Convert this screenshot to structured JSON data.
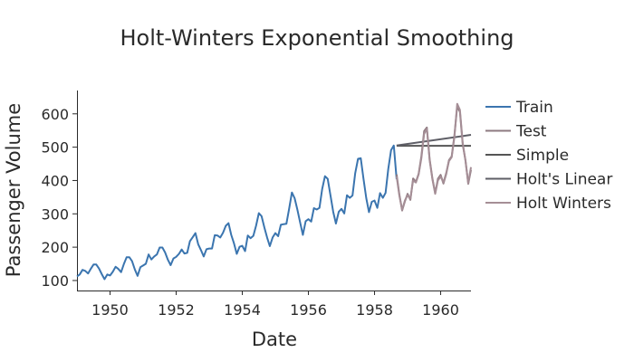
{
  "chart_data": {
    "type": "line",
    "title": "Holt-Winters Exponential Smoothing",
    "xlabel": "Date",
    "ylabel": "Passenger Volume",
    "x_ticks": [
      "1950",
      "1952",
      "1954",
      "1956",
      "1958",
      "1960"
    ],
    "y_ticks": [
      "100",
      "200",
      "300",
      "400",
      "500",
      "600"
    ],
    "xlim": [
      "1949-01",
      "1960-12"
    ],
    "ylim": [
      70,
      670
    ],
    "grid": false,
    "legend_position": "right",
    "series": [
      {
        "name": "Train",
        "color": "#3b75af",
        "dates": [
          "1949-01",
          "1949-02",
          "1949-03",
          "1949-04",
          "1949-05",
          "1949-06",
          "1949-07",
          "1949-08",
          "1949-09",
          "1949-10",
          "1949-11",
          "1949-12",
          "1950-01",
          "1950-02",
          "1950-03",
          "1950-04",
          "1950-05",
          "1950-06",
          "1950-07",
          "1950-08",
          "1950-09",
          "1950-10",
          "1950-11",
          "1950-12",
          "1951-01",
          "1951-02",
          "1951-03",
          "1951-04",
          "1951-05",
          "1951-06",
          "1951-07",
          "1951-08",
          "1951-09",
          "1951-10",
          "1951-11",
          "1951-12",
          "1952-01",
          "1952-02",
          "1952-03",
          "1952-04",
          "1952-05",
          "1952-06",
          "1952-07",
          "1952-08",
          "1952-09",
          "1952-10",
          "1952-11",
          "1952-12",
          "1953-01",
          "1953-02",
          "1953-03",
          "1953-04",
          "1953-05",
          "1953-06",
          "1953-07",
          "1953-08",
          "1953-09",
          "1953-10",
          "1953-11",
          "1953-12",
          "1954-01",
          "1954-02",
          "1954-03",
          "1954-04",
          "1954-05",
          "1954-06",
          "1954-07",
          "1954-08",
          "1954-09",
          "1954-10",
          "1954-11",
          "1954-12",
          "1955-01",
          "1955-02",
          "1955-03",
          "1955-04",
          "1955-05",
          "1955-06",
          "1955-07",
          "1955-08",
          "1955-09",
          "1955-10",
          "1955-11",
          "1955-12",
          "1956-01",
          "1956-02",
          "1956-03",
          "1956-04",
          "1956-05",
          "1956-06",
          "1956-07",
          "1956-08",
          "1956-09",
          "1956-10",
          "1956-11",
          "1956-12",
          "1957-01",
          "1957-02",
          "1957-03",
          "1957-04",
          "1957-05",
          "1957-06",
          "1957-07",
          "1957-08",
          "1957-09",
          "1957-10",
          "1957-11",
          "1957-12",
          "1958-01",
          "1958-02",
          "1958-03",
          "1958-04",
          "1958-05",
          "1958-06",
          "1958-07",
          "1958-08",
          "1958-09"
        ],
        "values": [
          112,
          118,
          132,
          129,
          121,
          135,
          148,
          148,
          136,
          119,
          104,
          118,
          115,
          126,
          141,
          135,
          125,
          149,
          170,
          170,
          158,
          133,
          114,
          140,
          145,
          150,
          178,
          163,
          172,
          178,
          199,
          199,
          184,
          162,
          146,
          166,
          171,
          180,
          193,
          181,
          183,
          218,
          230,
          242,
          209,
          191,
          172,
          194,
          196,
          196,
          236,
          235,
          229,
          243,
          264,
          272,
          237,
          211,
          180,
          201,
          204,
          188,
          235,
          227,
          234,
          264,
          302,
          293,
          259,
          229,
          203,
          229,
          242,
          233,
          267,
          269,
          270,
          315,
          364,
          347,
          312,
          274,
          237,
          278,
          284,
          277,
          317,
          313,
          318,
          374,
          413,
          405,
          355,
          306,
          271,
          306,
          315,
          301,
          356,
          348,
          355,
          422,
          465,
          467,
          404,
          347,
          305,
          336,
          340,
          318,
          362,
          348,
          363,
          435,
          491,
          505,
          404
        ]
      },
      {
        "name": "Test",
        "color": "#8e7a80",
        "dates": [
          "1958-09",
          "1958-10",
          "1958-11",
          "1958-12",
          "1959-01",
          "1959-02",
          "1959-03",
          "1959-04",
          "1959-05",
          "1959-06",
          "1959-07",
          "1959-08",
          "1959-09",
          "1959-10",
          "1959-11",
          "1959-12",
          "1960-01",
          "1960-02",
          "1960-03",
          "1960-04",
          "1960-05",
          "1960-06",
          "1960-07",
          "1960-08",
          "1960-09",
          "1960-10",
          "1960-11",
          "1960-12"
        ],
        "values": [
          418,
          359,
          310,
          337,
          360,
          342,
          406,
          396,
          420,
          472,
          548,
          559,
          463,
          407,
          362,
          405,
          417,
          391,
          419,
          461,
          472,
          535,
          622,
          606,
          508,
          461,
          390,
          432
        ]
      },
      {
        "name": "Simple",
        "color": "#555555",
        "dates": [
          "1958-09",
          "1960-12"
        ],
        "values": [
          504,
          504
        ]
      },
      {
        "name": "Holt's Linear",
        "color": "#5e5e66",
        "dates": [
          "1958-09",
          "1960-12"
        ],
        "values": [
          505,
          537
        ]
      },
      {
        "name": "Holt Winters",
        "color": "#a58e96",
        "dates": [
          "1958-09",
          "1958-10",
          "1958-11",
          "1958-12",
          "1959-01",
          "1959-02",
          "1959-03",
          "1959-04",
          "1959-05",
          "1959-06",
          "1959-07",
          "1959-08",
          "1959-09",
          "1959-10",
          "1959-11",
          "1959-12",
          "1960-01",
          "1960-02",
          "1960-03",
          "1960-04",
          "1960-05",
          "1960-06",
          "1960-07",
          "1960-08",
          "1960-09",
          "1960-10",
          "1960-11",
          "1960-12"
        ],
        "values": [
          412,
          355,
          312,
          340,
          356,
          345,
          400,
          394,
          418,
          466,
          540,
          555,
          460,
          404,
          360,
          400,
          412,
          394,
          422,
          458,
          470,
          530,
          630,
          612,
          512,
          460,
          392,
          440
        ]
      }
    ]
  }
}
